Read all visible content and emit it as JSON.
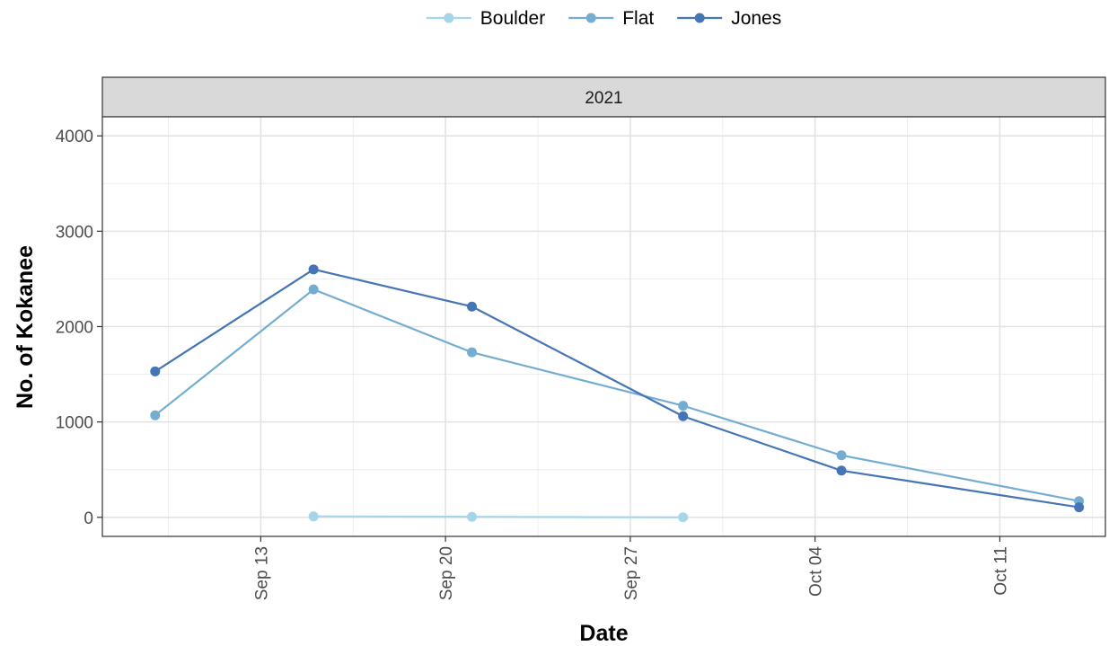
{
  "chart_data": {
    "type": "line",
    "facet": "2021",
    "xlabel": "Date",
    "ylabel": "No. of Kokanee",
    "xlim": [
      "2021-09-07",
      "2021-10-15"
    ],
    "ylim": [
      -200,
      4200
    ],
    "x_ticks": [
      {
        "date": "2021-09-13",
        "label": "Sep 13"
      },
      {
        "date": "2021-09-20",
        "label": "Sep 20"
      },
      {
        "date": "2021-09-27",
        "label": "Sep 27"
      },
      {
        "date": "2021-10-04",
        "label": "Oct 04"
      },
      {
        "date": "2021-10-11",
        "label": "Oct 11"
      }
    ],
    "y_ticks": [
      0,
      1000,
      2000,
      3000,
      4000
    ],
    "grid": true,
    "legend_position": "top",
    "series": [
      {
        "name": "Boulder",
        "color": "#a6d5ea",
        "points": [
          [
            "2021-09-15",
            10
          ],
          [
            "2021-09-21",
            5
          ],
          [
            "2021-09-29",
            0
          ]
        ]
      },
      {
        "name": "Flat",
        "color": "#74add1",
        "points": [
          [
            "2021-09-09",
            1070
          ],
          [
            "2021-09-15",
            2390
          ],
          [
            "2021-09-21",
            1730
          ],
          [
            "2021-09-29",
            1170
          ],
          [
            "2021-10-05",
            650
          ],
          [
            "2021-10-14",
            170
          ]
        ]
      },
      {
        "name": "Jones",
        "color": "#4575b4",
        "points": [
          [
            "2021-09-09",
            1530
          ],
          [
            "2021-09-15",
            2600
          ],
          [
            "2021-09-21",
            2210
          ],
          [
            "2021-09-29",
            1060
          ],
          [
            "2021-10-05",
            490
          ],
          [
            "2021-10-14",
            105
          ]
        ]
      }
    ]
  }
}
